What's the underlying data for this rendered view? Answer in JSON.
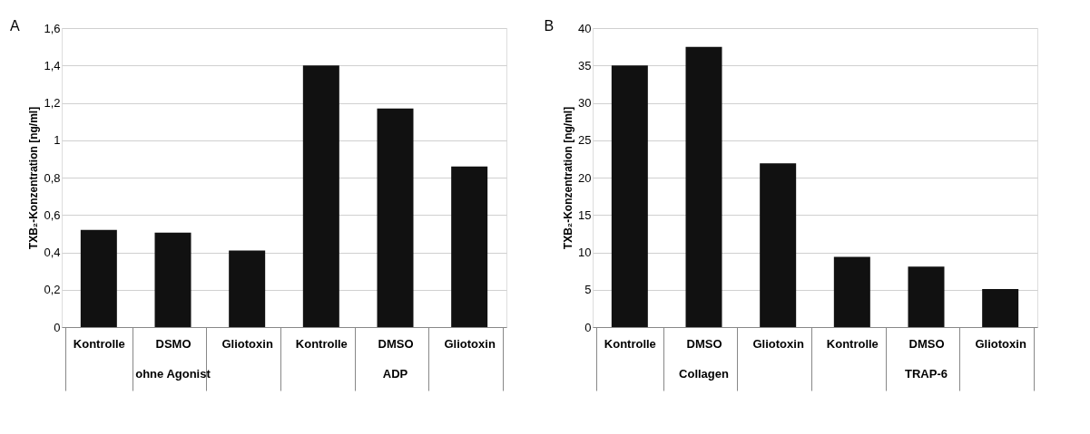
{
  "chart_data": [
    {
      "type": "bar",
      "title": "A",
      "ylabel": "TXB₂-Konzentration [ng/ml]",
      "categories": [
        "Kontrolle",
        "DSMO",
        "Gliotoxin",
        "Kontrolle",
        "DMSO",
        "Gliotoxin"
      ],
      "values": [
        0.52,
        0.505,
        0.41,
        1.4,
        1.17,
        0.86
      ],
      "color": "#111111",
      "ylim": [
        0,
        1.6
      ],
      "yticks": [
        0,
        {
          "value": 0.2,
          "label": "0,2"
        },
        {
          "value": 0.4,
          "label": "0,4"
        },
        {
          "value": 0.6,
          "label": "0,6"
        },
        {
          "value": 0.8,
          "label": "0,8"
        },
        1,
        {
          "value": 1.2,
          "label": "1,2"
        },
        {
          "value": 1.4,
          "label": "1,4"
        },
        {
          "value": 1.6,
          "label": "1,6"
        }
      ],
      "grid": "y",
      "annotations": [
        "ohne Agonist",
        "ADP"
      ]
    },
    {
      "type": "bar",
      "title": "B",
      "ylabel": "TXB₂-Konzentration [ng/ml]",
      "categories": [
        "Kontrolle",
        "DMSO",
        "Gliotoxin",
        "Kontrolle",
        "DMSO",
        "Gliotoxin"
      ],
      "values": [
        35,
        37.5,
        21.9,
        9.4,
        8.1,
        5.1
      ],
      "color": "#111111",
      "ylim": [
        0,
        40
      ],
      "yticks": [
        0,
        5,
        10,
        15,
        20,
        25,
        30,
        35,
        40
      ],
      "grid": "y",
      "annotations": [
        "Collagen",
        "TRAP-6"
      ]
    }
  ]
}
